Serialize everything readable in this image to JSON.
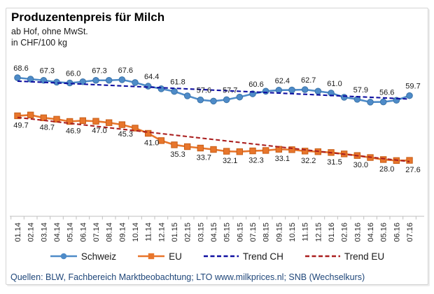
{
  "header": {
    "title": "Produzentenpreis für Milch",
    "subtitle_line1": "ab Hof, ohne MwSt.",
    "subtitle_line2": "in CHF/100 kg"
  },
  "chart_data": {
    "type": "line",
    "title": "Produzentenpreis für Milch",
    "subtitle": "ab Hof, ohne MwSt. in CHF/100 kg",
    "x": [
      "01.14",
      "02.14",
      "03.14",
      "04.14",
      "05.14",
      "06.14",
      "07.14",
      "08.14",
      "09.14",
      "10.14",
      "11.14",
      "12.14",
      "01.15",
      "02.15",
      "03.15",
      "04.15",
      "05.15",
      "06.15",
      "07.15",
      "08.15",
      "09.15",
      "10.15",
      "11.15",
      "12.15",
      "01.16",
      "02.16",
      "03.16",
      "04.16",
      "05.16",
      "06.16",
      "07.16"
    ],
    "x_label_rotation": -90,
    "grid": false,
    "y_axis_visible": false,
    "legend_position": "bottom",
    "data_label_interval": 2,
    "series": [
      {
        "name": "Schweiz",
        "type": "line",
        "marker": "circle",
        "color": "#4e8bc8",
        "marker_stroke": "#3c74a8",
        "label_position": "above",
        "values": [
          68.6,
          67.9,
          67.3,
          66.4,
          66.0,
          66.6,
          67.3,
          67.3,
          67.6,
          66.2,
          64.4,
          63.1,
          61.8,
          59.6,
          57.6,
          57.0,
          57.7,
          59.0,
          60.6,
          61.9,
          62.4,
          62.5,
          62.7,
          61.9,
          61.0,
          58.9,
          57.9,
          56.5,
          56.6,
          57.4,
          59.7
        ],
        "labeled_values": [
          68.6,
          67.3,
          66.0,
          67.3,
          67.6,
          64.4,
          61.8,
          57.6,
          57.7,
          60.6,
          62.4,
          62.7,
          61.0,
          57.9,
          56.6,
          59.7
        ]
      },
      {
        "name": "EU",
        "type": "line",
        "marker": "square",
        "color": "#e8762c",
        "marker_stroke": "#c75e17",
        "label_position": "below",
        "values": [
          49.7,
          50.1,
          48.7,
          48.0,
          46.9,
          47.3,
          47.0,
          46.3,
          45.3,
          43.6,
          41.0,
          37.4,
          35.3,
          34.4,
          33.7,
          33.0,
          32.1,
          31.9,
          32.3,
          32.5,
          33.1,
          32.9,
          32.2,
          31.9,
          31.5,
          30.8,
          30.0,
          29.0,
          28.0,
          27.5,
          27.6
        ],
        "labeled_values": [
          49.7,
          48.7,
          46.9,
          47.0,
          45.3,
          41.0,
          35.3,
          33.7,
          32.1,
          32.3,
          33.1,
          32.2,
          31.5,
          30.0,
          28.0,
          27.6
        ]
      },
      {
        "name": "Trend CH",
        "type": "trend",
        "style": "dashed",
        "color": "#0f0fa0",
        "start_value": 66.9,
        "end_value": 58.0
      },
      {
        "name": "Trend EU",
        "type": "trend",
        "style": "dashed",
        "color": "#aa1f1f",
        "start_value": 48.9,
        "end_value": 27.0
      }
    ]
  },
  "legend": {
    "items": [
      {
        "label": "Schweiz",
        "swatch": "line-circle",
        "color": "#4e8bc8"
      },
      {
        "label": "EU",
        "swatch": "line-square",
        "color": "#e8762c"
      },
      {
        "label": "Trend CH",
        "swatch": "dashed-line",
        "color": "#0f0fa0"
      },
      {
        "label": "Trend EU",
        "swatch": "dashed-line",
        "color": "#aa1f1f"
      }
    ]
  },
  "source": {
    "text": "Quellen: BLW, Fachbereich Marktbeobachtung; LTO www.milkprices.nl; SNB (Wechselkurs)"
  },
  "colors": {
    "axis": "#bfbfbf",
    "tick_text": "#262626",
    "data_label_text": "#1a1a1a",
    "source_text": "#20477a",
    "border": "#d4d4d4"
  }
}
